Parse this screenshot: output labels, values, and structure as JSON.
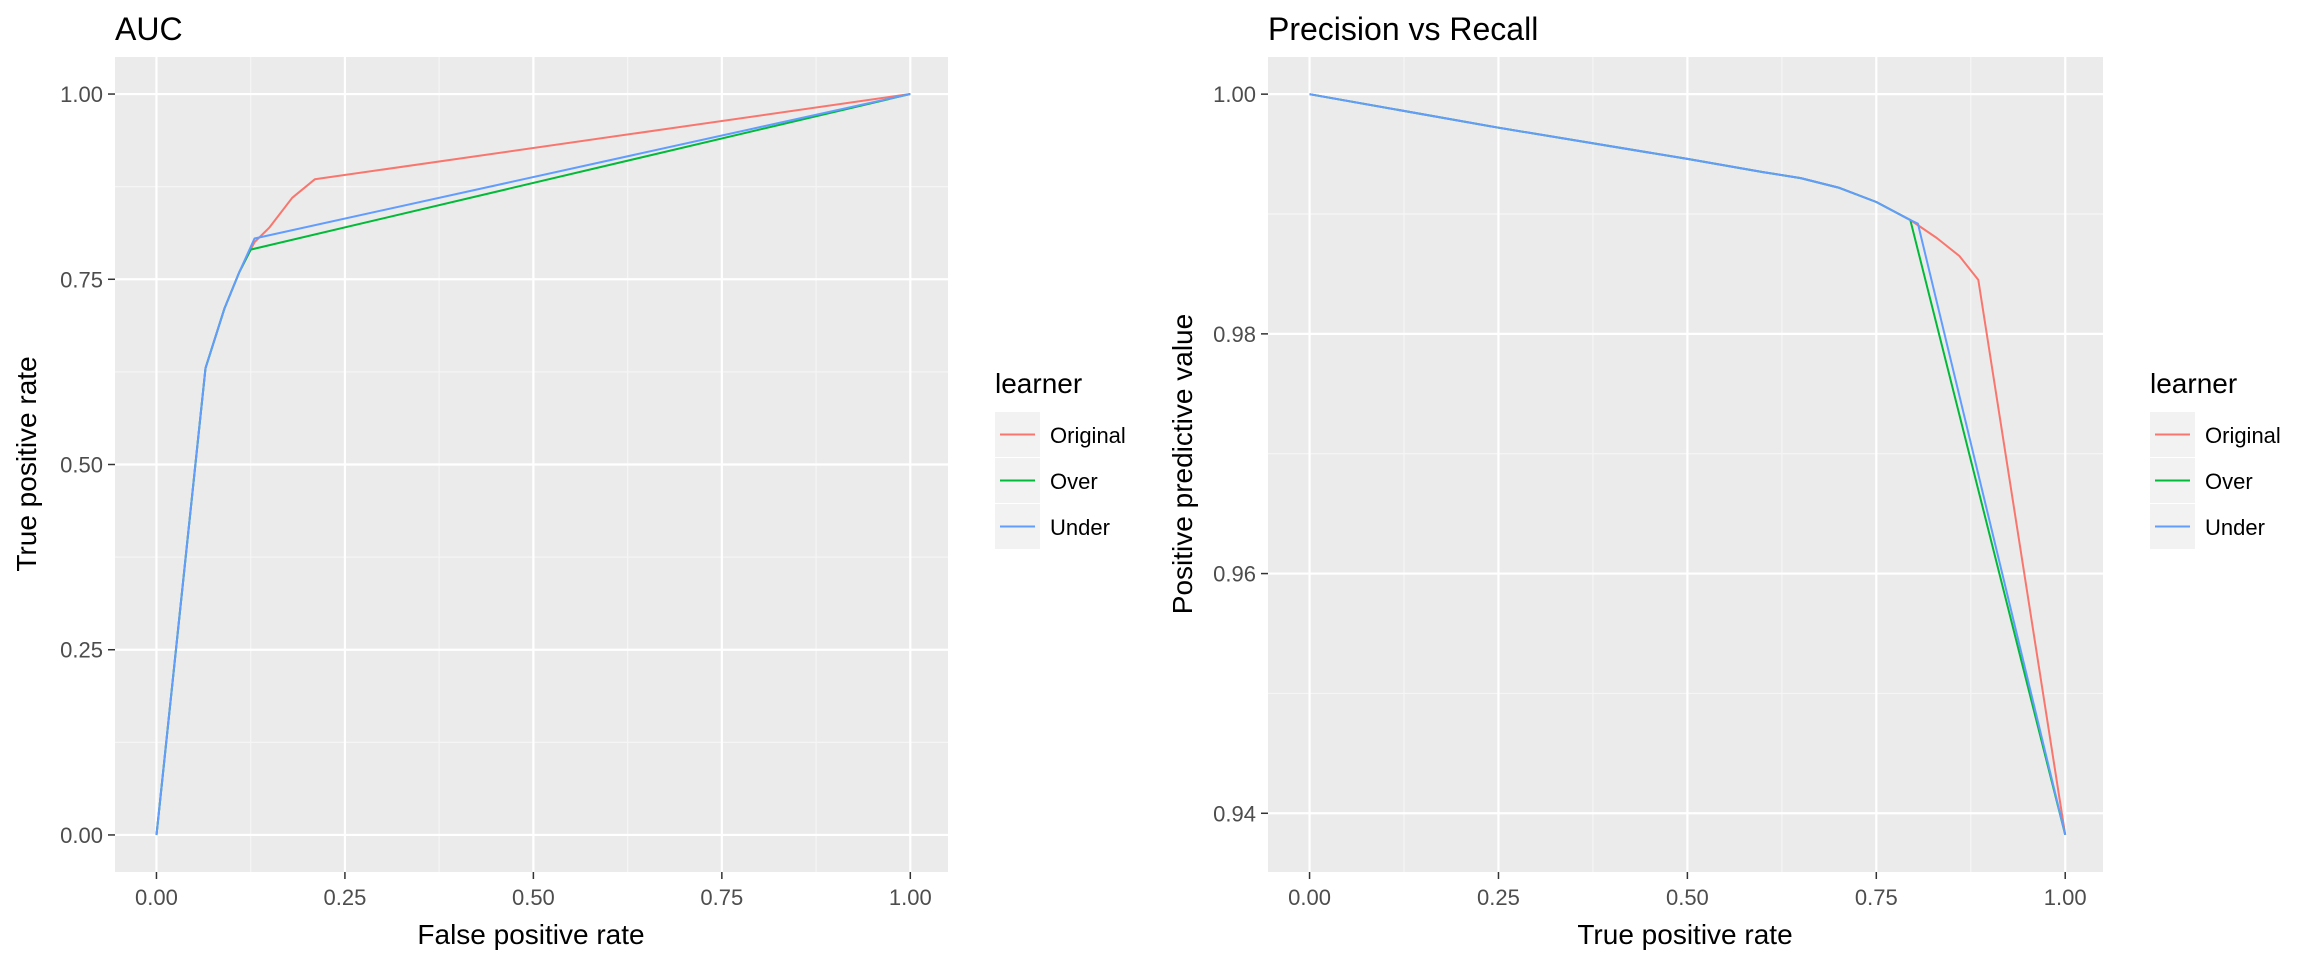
{
  "chart_data": [
    {
      "type": "line",
      "title": "AUC",
      "xlabel": "False positive rate",
      "ylabel": "True positive rate",
      "xlim": [
        -0.055,
        1.05
      ],
      "ylim": [
        -0.05,
        1.05
      ],
      "xticks": [
        0,
        0.25,
        0.5,
        0.75,
        1
      ],
      "xtick_labels": [
        "0.00",
        "0.25",
        "0.50",
        "0.75",
        "1.00"
      ],
      "yticks": [
        0,
        0.25,
        0.5,
        0.75,
        1
      ],
      "ytick_labels": [
        "0.00",
        "0.25",
        "0.50",
        "0.75",
        "1.00"
      ],
      "grid": true,
      "legend": {
        "title": "learner",
        "position": "right"
      },
      "series": [
        {
          "name": "Original",
          "color": "#F8766D",
          "x": [
            0,
            0.065,
            0.09,
            0.11,
            0.13,
            0.15,
            0.18,
            0.21,
            1
          ],
          "y": [
            0,
            0.63,
            0.71,
            0.76,
            0.8,
            0.82,
            0.86,
            0.885,
            1
          ]
        },
        {
          "name": "Over",
          "color": "#00BA38",
          "x": [
            0,
            0.065,
            0.09,
            0.11,
            0.125,
            1
          ],
          "y": [
            0,
            0.63,
            0.71,
            0.76,
            0.79,
            1
          ]
        },
        {
          "name": "Under",
          "color": "#619CFF",
          "x": [
            0,
            0.065,
            0.09,
            0.11,
            0.13,
            1
          ],
          "y": [
            0,
            0.63,
            0.71,
            0.76,
            0.805,
            1
          ]
        }
      ]
    },
    {
      "type": "line",
      "title": "Precision vs Recall",
      "xlabel": "True positive rate",
      "ylabel": "Positive predictive value",
      "xlim": [
        -0.055,
        1.05
      ],
      "ylim": [
        0.9351,
        1.0031
      ],
      "xticks": [
        0,
        0.25,
        0.5,
        0.75,
        1
      ],
      "xtick_labels": [
        "0.00",
        "0.25",
        "0.50",
        "0.75",
        "1.00"
      ],
      "yticks": [
        0.94,
        0.96,
        0.98,
        1.0
      ],
      "ytick_labels": [
        "0.94",
        "0.96",
        "0.98",
        "1.00"
      ],
      "grid": true,
      "legend": {
        "title": "learner",
        "position": "right"
      },
      "series": [
        {
          "name": "Original",
          "color": "#F8766D",
          "x": [
            0,
            0.25,
            0.5,
            0.6,
            0.65,
            0.7,
            0.75,
            0.795,
            0.83,
            0.86,
            0.885,
            1
          ],
          "y": [
            1.0,
            0.9972,
            0.9946,
            0.9935,
            0.993,
            0.9922,
            0.991,
            0.9895,
            0.988,
            0.9865,
            0.9845,
            0.9382
          ]
        },
        {
          "name": "Over",
          "color": "#00BA38",
          "x": [
            0,
            0.25,
            0.5,
            0.6,
            0.65,
            0.7,
            0.75,
            0.795,
            1
          ],
          "y": [
            1.0,
            0.9972,
            0.9946,
            0.9935,
            0.993,
            0.9922,
            0.991,
            0.9895,
            0.9382
          ]
        },
        {
          "name": "Under",
          "color": "#619CFF",
          "x": [
            0,
            0.25,
            0.5,
            0.6,
            0.65,
            0.7,
            0.75,
            0.795,
            0.805,
            1
          ],
          "y": [
            1.0,
            0.9972,
            0.9946,
            0.9935,
            0.993,
            0.9922,
            0.991,
            0.9895,
            0.9892,
            0.9382
          ]
        }
      ]
    }
  ]
}
